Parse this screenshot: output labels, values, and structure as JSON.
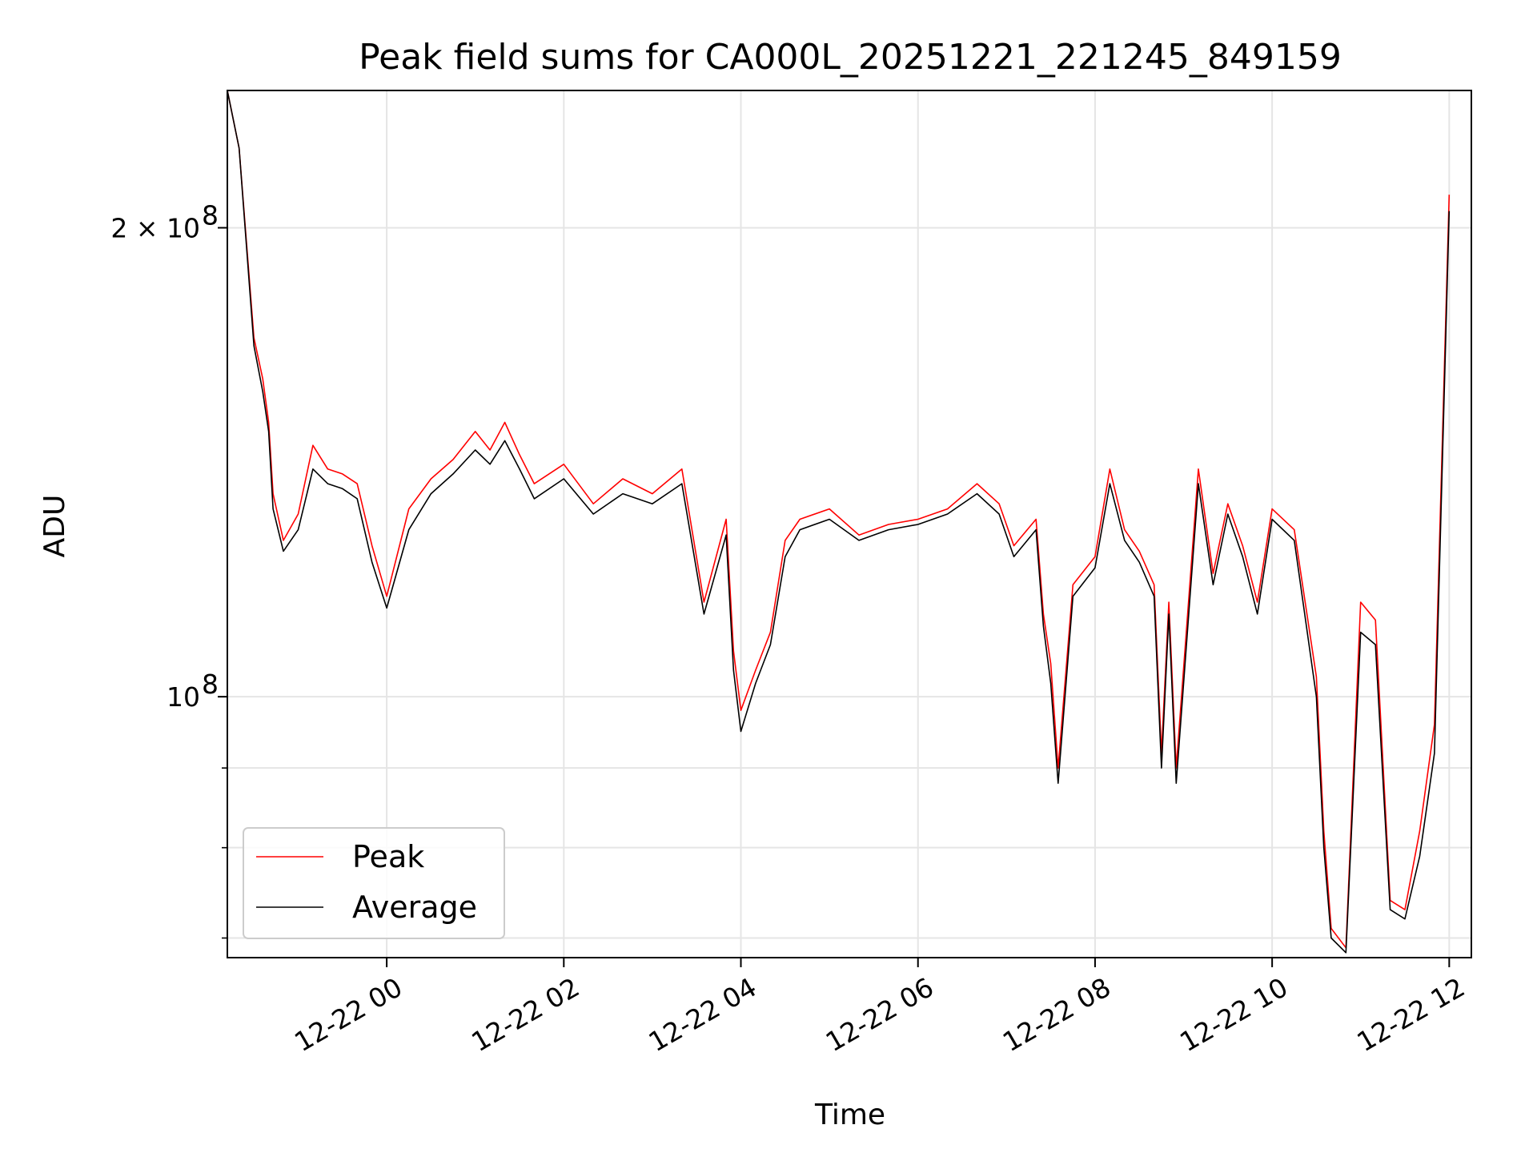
{
  "chart_data": {
    "type": "line",
    "title": "Peak field sums for CA000L_20251221_221245_849159",
    "xlabel": "Time",
    "ylabel": "ADU",
    "y_scale": "log",
    "ylim": [
      68000000,
      245000000
    ],
    "xlim": [
      "2025-12-21 22:12",
      "2025-12-22 12:15"
    ],
    "grid": true,
    "legend_position": "lower-left",
    "x_ticks": [
      "12-22 00",
      "12-22 02",
      "12-22 04",
      "12-22 06",
      "12-22 08",
      "12-22 10",
      "12-22 12"
    ],
    "y_ticks": [
      {
        "value": 100000000,
        "label": "10",
        "exp": "8"
      },
      {
        "value": 200000000,
        "label": "2 × 10",
        "exp": "8"
      }
    ],
    "colors": {
      "peak": "#ff0000",
      "average": "#000000",
      "grid": "#e5e5e5"
    },
    "series": [
      {
        "name": "Peak",
        "color": "#ff0000",
        "x": [
          "2025-12-21 22:12",
          "2025-12-21 22:20",
          "2025-12-21 22:30",
          "2025-12-21 22:36",
          "2025-12-21 22:40",
          "2025-12-21 22:43",
          "2025-12-21 22:50",
          "2025-12-21 23:00",
          "2025-12-21 23:10",
          "2025-12-21 23:20",
          "2025-12-21 23:30",
          "2025-12-21 23:40",
          "2025-12-21 23:50",
          "2025-12-22 00:00",
          "2025-12-22 00:15",
          "2025-12-22 00:30",
          "2025-12-22 00:45",
          "2025-12-22 01:00",
          "2025-12-22 01:10",
          "2025-12-22 01:20",
          "2025-12-22 01:30",
          "2025-12-22 01:40",
          "2025-12-22 02:00",
          "2025-12-22 02:20",
          "2025-12-22 02:40",
          "2025-12-22 03:00",
          "2025-12-22 03:20",
          "2025-12-22 03:35",
          "2025-12-22 03:50",
          "2025-12-22 03:55",
          "2025-12-22 04:00",
          "2025-12-22 04:10",
          "2025-12-22 04:20",
          "2025-12-22 04:30",
          "2025-12-22 04:40",
          "2025-12-22 05:00",
          "2025-12-22 05:20",
          "2025-12-22 05:40",
          "2025-12-22 06:00",
          "2025-12-22 06:20",
          "2025-12-22 06:40",
          "2025-12-22 06:55",
          "2025-12-22 07:05",
          "2025-12-22 07:20",
          "2025-12-22 07:25",
          "2025-12-22 07:30",
          "2025-12-22 07:35",
          "2025-12-22 07:45",
          "2025-12-22 08:00",
          "2025-12-22 08:10",
          "2025-12-22 08:20",
          "2025-12-22 08:30",
          "2025-12-22 08:40",
          "2025-12-22 08:45",
          "2025-12-22 08:50",
          "2025-12-22 08:55",
          "2025-12-22 09:10",
          "2025-12-22 09:20",
          "2025-12-22 09:30",
          "2025-12-22 09:40",
          "2025-12-22 09:50",
          "2025-12-22 10:00",
          "2025-12-22 10:15",
          "2025-12-22 10:30",
          "2025-12-22 10:35",
          "2025-12-22 10:40",
          "2025-12-22 10:50",
          "2025-12-22 11:00",
          "2025-12-22 11:10",
          "2025-12-22 11:20",
          "2025-12-22 11:30",
          "2025-12-22 11:40",
          "2025-12-22 11:50",
          "2025-12-22 12:00"
        ],
        "values": [
          250000000,
          225000000,
          170000000,
          160000000,
          150000000,
          135000000,
          126000000,
          131000000,
          145000000,
          140000000,
          139000000,
          137000000,
          125000000,
          116000000,
          132000000,
          138000000,
          142000000,
          148000000,
          144000000,
          150000000,
          143000000,
          137000000,
          141000000,
          133000000,
          138000000,
          135000000,
          140000000,
          115000000,
          130000000,
          107000000,
          98000000,
          104000000,
          110000000,
          126000000,
          130000000,
          132000000,
          127000000,
          129000000,
          130000000,
          132000000,
          137000000,
          133000000,
          125000000,
          130000000,
          113000000,
          105000000,
          90000000,
          118000000,
          123000000,
          140000000,
          128000000,
          124000000,
          118000000,
          92000000,
          115000000,
          90000000,
          140000000,
          120000000,
          133000000,
          125000000,
          115000000,
          132000000,
          128000000,
          103000000,
          82000000,
          71000000,
          69000000,
          115000000,
          112000000,
          74000000,
          73000000,
          82000000,
          96000000,
          210000000
        ]
      },
      {
        "name": "Average",
        "color": "#000000",
        "x": [
          "2025-12-21 22:12",
          "2025-12-21 22:20",
          "2025-12-21 22:30",
          "2025-12-21 22:36",
          "2025-12-21 22:40",
          "2025-12-21 22:43",
          "2025-12-21 22:50",
          "2025-12-21 23:00",
          "2025-12-21 23:10",
          "2025-12-21 23:20",
          "2025-12-21 23:30",
          "2025-12-21 23:40",
          "2025-12-21 23:50",
          "2025-12-22 00:00",
          "2025-12-22 00:15",
          "2025-12-22 00:30",
          "2025-12-22 00:45",
          "2025-12-22 01:00",
          "2025-12-22 01:10",
          "2025-12-22 01:20",
          "2025-12-22 01:30",
          "2025-12-22 01:40",
          "2025-12-22 02:00",
          "2025-12-22 02:20",
          "2025-12-22 02:40",
          "2025-12-22 03:00",
          "2025-12-22 03:20",
          "2025-12-22 03:35",
          "2025-12-22 03:50",
          "2025-12-22 03:55",
          "2025-12-22 04:00",
          "2025-12-22 04:10",
          "2025-12-22 04:20",
          "2025-12-22 04:30",
          "2025-12-22 04:40",
          "2025-12-22 05:00",
          "2025-12-22 05:20",
          "2025-12-22 05:40",
          "2025-12-22 06:00",
          "2025-12-22 06:20",
          "2025-12-22 06:40",
          "2025-12-22 06:55",
          "2025-12-22 07:05",
          "2025-12-22 07:20",
          "2025-12-22 07:25",
          "2025-12-22 07:30",
          "2025-12-22 07:35",
          "2025-12-22 07:45",
          "2025-12-22 08:00",
          "2025-12-22 08:10",
          "2025-12-22 08:20",
          "2025-12-22 08:30",
          "2025-12-22 08:40",
          "2025-12-22 08:45",
          "2025-12-22 08:50",
          "2025-12-22 08:55",
          "2025-12-22 09:10",
          "2025-12-22 09:20",
          "2025-12-22 09:30",
          "2025-12-22 09:40",
          "2025-12-22 09:50",
          "2025-12-22 10:00",
          "2025-12-22 10:15",
          "2025-12-22 10:30",
          "2025-12-22 10:35",
          "2025-12-22 10:40",
          "2025-12-22 10:50",
          "2025-12-22 11:00",
          "2025-12-22 11:10",
          "2025-12-22 11:20",
          "2025-12-22 11:30",
          "2025-12-22 11:40",
          "2025-12-22 11:50",
          "2025-12-22 12:00"
        ],
        "values": [
          250000000,
          225000000,
          168000000,
          157000000,
          148000000,
          132000000,
          124000000,
          128000000,
          140000000,
          137000000,
          136000000,
          134000000,
          122000000,
          114000000,
          128000000,
          135000000,
          139000000,
          144000000,
          141000000,
          146000000,
          140000000,
          134000000,
          138000000,
          131000000,
          135000000,
          133000000,
          137000000,
          113000000,
          127000000,
          104000000,
          95000000,
          102000000,
          108000000,
          123000000,
          128000000,
          130000000,
          126000000,
          128000000,
          129000000,
          131000000,
          135000000,
          131000000,
          123000000,
          128000000,
          111000000,
          102000000,
          88000000,
          116000000,
          121000000,
          137000000,
          126000000,
          122000000,
          116000000,
          90000000,
          113000000,
          88000000,
          137000000,
          118000000,
          131000000,
          123000000,
          113000000,
          130000000,
          126000000,
          100000000,
          80000000,
          70000000,
          68500000,
          110000000,
          108000000,
          73000000,
          72000000,
          79000000,
          92000000,
          205000000
        ]
      }
    ],
    "legend": [
      {
        "label": "Peak",
        "color": "#ff0000"
      },
      {
        "label": "Average",
        "color": "#000000"
      }
    ]
  }
}
